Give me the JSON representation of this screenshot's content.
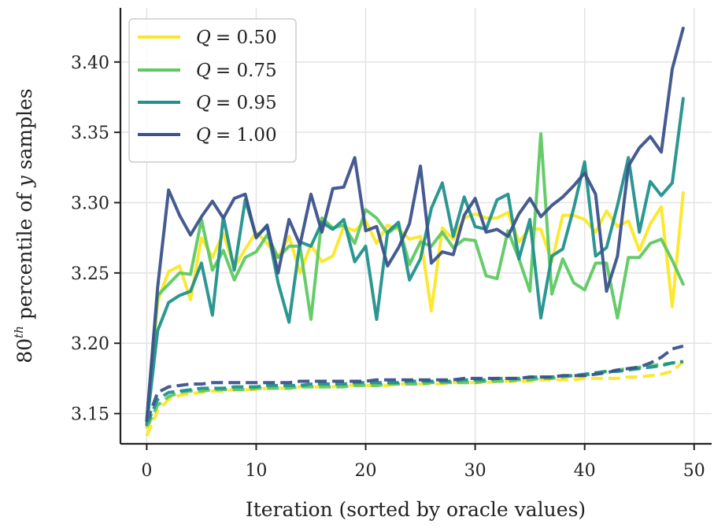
{
  "chart_data": {
    "type": "line",
    "xlabel": "Iteration (sorted by oracle values)",
    "ylabel": "80th percentile of y samples",
    "ylabel_parts": {
      "base": "80",
      "sup": "th",
      "mid": " percentile of ",
      "var": "y",
      "end": " samples"
    },
    "xlim": [
      -2.4,
      51.6
    ],
    "ylim": [
      3.1285,
      3.4385
    ],
    "xticks": [
      0,
      10,
      20,
      30,
      40,
      50
    ],
    "yticks": [
      3.15,
      3.2,
      3.25,
      3.3,
      3.35,
      3.4
    ],
    "ytick_labels": [
      "3.15",
      "3.20",
      "3.25",
      "3.30",
      "3.35",
      "3.40"
    ],
    "grid": true,
    "legend_position": "top-left",
    "series": [
      {
        "name": "Q = 0.50",
        "legend_q": "Q",
        "legend_val": "= 0.50",
        "color": "#fde725",
        "style": "solid",
        "values": [
          3.14,
          3.23,
          3.251,
          3.255,
          3.231,
          3.275,
          3.261,
          3.278,
          3.254,
          3.267,
          3.279,
          3.271,
          3.261,
          3.276,
          3.25,
          3.27,
          3.258,
          3.262,
          3.283,
          3.28,
          3.287,
          3.271,
          3.284,
          3.281,
          3.274,
          3.276,
          3.223,
          3.282,
          3.274,
          3.289,
          3.292,
          3.289,
          3.289,
          3.293,
          3.272,
          3.282,
          3.281,
          3.258,
          3.291,
          3.291,
          3.288,
          3.279,
          3.294,
          3.283,
          3.287,
          3.266,
          3.285,
          3.297,
          3.226,
          3.307
        ]
      },
      {
        "name": "Q = 0.75",
        "legend_q": "Q",
        "legend_val": "= 0.75",
        "color": "#5ec962",
        "style": "solid",
        "values": [
          3.145,
          3.234,
          3.242,
          3.25,
          3.249,
          3.288,
          3.252,
          3.266,
          3.245,
          3.261,
          3.265,
          3.277,
          3.261,
          3.269,
          3.269,
          3.217,
          3.289,
          3.282,
          3.284,
          3.271,
          3.295,
          3.289,
          3.278,
          3.284,
          3.256,
          3.272,
          3.269,
          3.279,
          3.268,
          3.274,
          3.273,
          3.248,
          3.246,
          3.28,
          3.26,
          3.237,
          3.349,
          3.235,
          3.26,
          3.243,
          3.238,
          3.257,
          3.257,
          3.218,
          3.261,
          3.261,
          3.271,
          3.274,
          3.259,
          3.242
        ]
      },
      {
        "name": "Q = 0.95",
        "legend_q": "Q",
        "legend_val": "= 0.95",
        "color": "#21918c",
        "style": "solid",
        "values": [
          3.142,
          3.209,
          3.229,
          3.234,
          3.237,
          3.257,
          3.22,
          3.29,
          3.252,
          3.302,
          3.276,
          3.283,
          3.243,
          3.215,
          3.272,
          3.269,
          3.286,
          3.281,
          3.288,
          3.258,
          3.269,
          3.217,
          3.279,
          3.286,
          3.245,
          3.26,
          3.296,
          3.314,
          3.276,
          3.304,
          3.283,
          3.281,
          3.302,
          3.306,
          3.26,
          3.288,
          3.218,
          3.262,
          3.267,
          3.296,
          3.329,
          3.262,
          3.268,
          3.298,
          3.332,
          3.279,
          3.315,
          3.305,
          3.314,
          3.374
        ]
      },
      {
        "name": "Q = 1.00",
        "legend_q": "Q",
        "legend_val": "= 1.00",
        "color": "#3b528b",
        "style": "solid",
        "values": [
          3.145,
          3.24,
          3.309,
          3.291,
          3.277,
          3.29,
          3.301,
          3.289,
          3.303,
          3.306,
          3.275,
          3.284,
          3.25,
          3.288,
          3.27,
          3.306,
          3.279,
          3.31,
          3.311,
          3.332,
          3.28,
          3.283,
          3.255,
          3.268,
          3.285,
          3.326,
          3.257,
          3.265,
          3.263,
          3.291,
          3.303,
          3.279,
          3.281,
          3.276,
          3.292,
          3.303,
          3.29,
          3.298,
          3.304,
          3.312,
          3.321,
          3.306,
          3.237,
          3.262,
          3.326,
          3.339,
          3.347,
          3.336,
          3.395,
          3.424
        ]
      },
      {
        "name": "Q = 0.50 (dashed)",
        "color": "#fde725",
        "style": "dashed",
        "values": [
          3.134,
          3.152,
          3.16,
          3.163,
          3.164,
          3.165,
          3.166,
          3.166,
          3.167,
          3.167,
          3.167,
          3.168,
          3.168,
          3.168,
          3.169,
          3.169,
          3.169,
          3.169,
          3.17,
          3.17,
          3.17,
          3.17,
          3.17,
          3.171,
          3.171,
          3.171,
          3.171,
          3.171,
          3.172,
          3.172,
          3.172,
          3.172,
          3.173,
          3.173,
          3.173,
          3.173,
          3.174,
          3.174,
          3.174,
          3.174,
          3.175,
          3.175,
          3.175,
          3.175,
          3.176,
          3.176,
          3.177,
          3.178,
          3.18,
          3.187
        ]
      },
      {
        "name": "Q = 0.75 (dashed)",
        "color": "#5ec962",
        "style": "dashed",
        "values": [
          3.14,
          3.156,
          3.162,
          3.165,
          3.166,
          3.166,
          3.167,
          3.167,
          3.167,
          3.167,
          3.168,
          3.168,
          3.168,
          3.168,
          3.169,
          3.169,
          3.169,
          3.169,
          3.169,
          3.17,
          3.17,
          3.17,
          3.171,
          3.171,
          3.171,
          3.171,
          3.172,
          3.172,
          3.172,
          3.172,
          3.172,
          3.173,
          3.173,
          3.173,
          3.174,
          3.174,
          3.175,
          3.175,
          3.176,
          3.177,
          3.177,
          3.179,
          3.18,
          3.181,
          3.182,
          3.183,
          3.184,
          3.185,
          3.186,
          3.187
        ]
      },
      {
        "name": "Q = 0.95 (dashed)",
        "color": "#21918c",
        "style": "dashed",
        "values": [
          3.142,
          3.16,
          3.165,
          3.166,
          3.167,
          3.168,
          3.168,
          3.168,
          3.169,
          3.169,
          3.169,
          3.17,
          3.17,
          3.17,
          3.17,
          3.171,
          3.171,
          3.171,
          3.171,
          3.172,
          3.172,
          3.172,
          3.172,
          3.172,
          3.173,
          3.173,
          3.173,
          3.173,
          3.173,
          3.174,
          3.174,
          3.174,
          3.175,
          3.175,
          3.175,
          3.176,
          3.176,
          3.176,
          3.177,
          3.177,
          3.178,
          3.179,
          3.18,
          3.18,
          3.181,
          3.182,
          3.183,
          3.184,
          3.186,
          3.187
        ]
      },
      {
        "name": "Q = 1.00 (dashed)",
        "color": "#3b528b",
        "style": "dashed",
        "values": [
          3.144,
          3.165,
          3.169,
          3.17,
          3.171,
          3.171,
          3.172,
          3.172,
          3.172,
          3.172,
          3.172,
          3.172,
          3.172,
          3.172,
          3.173,
          3.173,
          3.173,
          3.173,
          3.173,
          3.173,
          3.173,
          3.174,
          3.174,
          3.174,
          3.174,
          3.174,
          3.174,
          3.174,
          3.174,
          3.175,
          3.175,
          3.175,
          3.175,
          3.175,
          3.175,
          3.176,
          3.176,
          3.176,
          3.177,
          3.177,
          3.177,
          3.178,
          3.179,
          3.181,
          3.182,
          3.183,
          3.186,
          3.19,
          3.196,
          3.198
        ]
      }
    ]
  }
}
